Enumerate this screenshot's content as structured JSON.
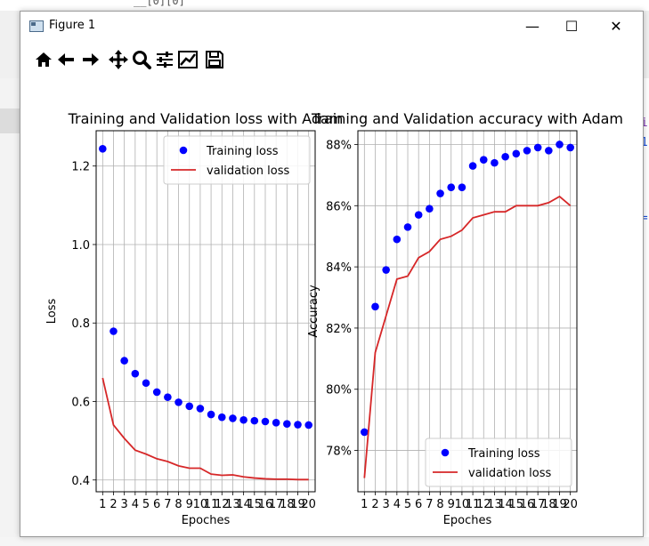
{
  "window": {
    "title": "Figure 1",
    "controls": {
      "minimize": "—",
      "maximize": "☐",
      "close": "✕"
    }
  },
  "toolbar": {
    "icons": [
      "home-icon",
      "back-arrow-icon",
      "forward-arrow-icon",
      "pan-icon",
      "zoom-icon",
      "configure-subplots-icon",
      "edit-axis-icon",
      "save-icon"
    ]
  },
  "background_code": {
    "top": "__[0][0]",
    "frag1": "ti",
    "frag2": "01",
    "frag3": "e="
  },
  "colors": {
    "training": "#0000ff",
    "validation": "#d62728"
  },
  "chart_data": [
    {
      "type": "line",
      "title": "Training and Validation loss with Adam",
      "xlabel": "Epoches",
      "ylabel": "Loss",
      "x": [
        1,
        2,
        3,
        4,
        5,
        6,
        7,
        8,
        9,
        10,
        11,
        12,
        13,
        14,
        15,
        16,
        17,
        18,
        19,
        20
      ],
      "ylim": [
        0.37,
        1.29
      ],
      "yticks": [
        0.4,
        0.6,
        0.8,
        1.0,
        1.2
      ],
      "ytick_labels": [
        "0.4",
        "0.6",
        "0.8",
        "1.0",
        "1.2"
      ],
      "grid": true,
      "legend": "top-right",
      "series": [
        {
          "name": "Training loss",
          "style": "points",
          "values": [
            1.244,
            0.779,
            0.704,
            0.671,
            0.647,
            0.624,
            0.611,
            0.598,
            0.588,
            0.582,
            0.567,
            0.56,
            0.557,
            0.553,
            0.551,
            0.549,
            0.546,
            0.543,
            0.541,
            0.54
          ]
        },
        {
          "name": "validation loss",
          "style": "line",
          "values": [
            0.66,
            0.54,
            0.506,
            0.476,
            0.466,
            0.454,
            0.447,
            0.436,
            0.43,
            0.43,
            0.415,
            0.412,
            0.413,
            0.408,
            0.405,
            0.403,
            0.402,
            0.402,
            0.401,
            0.401
          ]
        }
      ]
    },
    {
      "type": "line",
      "title": "Training and Validation accuracy with Adam",
      "xlabel": "Epoches",
      "ylabel": "Accuracy",
      "x": [
        1,
        2,
        3,
        4,
        5,
        6,
        7,
        8,
        9,
        10,
        11,
        12,
        13,
        14,
        15,
        16,
        17,
        18,
        19,
        20
      ],
      "ylim": [
        0.7665,
        0.8845
      ],
      "yticks": [
        0.78,
        0.8,
        0.82,
        0.84,
        0.86,
        0.88
      ],
      "ytick_labels": [
        "78%",
        "80%",
        "82%",
        "84%",
        "86%",
        "88%"
      ],
      "grid": true,
      "legend": "bottom-right",
      "series": [
        {
          "name": "Training loss",
          "style": "points",
          "values": [
            0.786,
            0.827,
            0.839,
            0.849,
            0.853,
            0.857,
            0.859,
            0.864,
            0.866,
            0.866,
            0.873,
            0.875,
            0.874,
            0.876,
            0.877,
            0.878,
            0.879,
            0.878,
            0.88,
            0.879
          ]
        },
        {
          "name": "validation loss",
          "style": "line",
          "values": [
            0.771,
            0.812,
            0.824,
            0.836,
            0.837,
            0.843,
            0.845,
            0.849,
            0.85,
            0.852,
            0.856,
            0.857,
            0.858,
            0.858,
            0.86,
            0.86,
            0.86,
            0.861,
            0.863,
            0.86
          ]
        }
      ]
    }
  ]
}
